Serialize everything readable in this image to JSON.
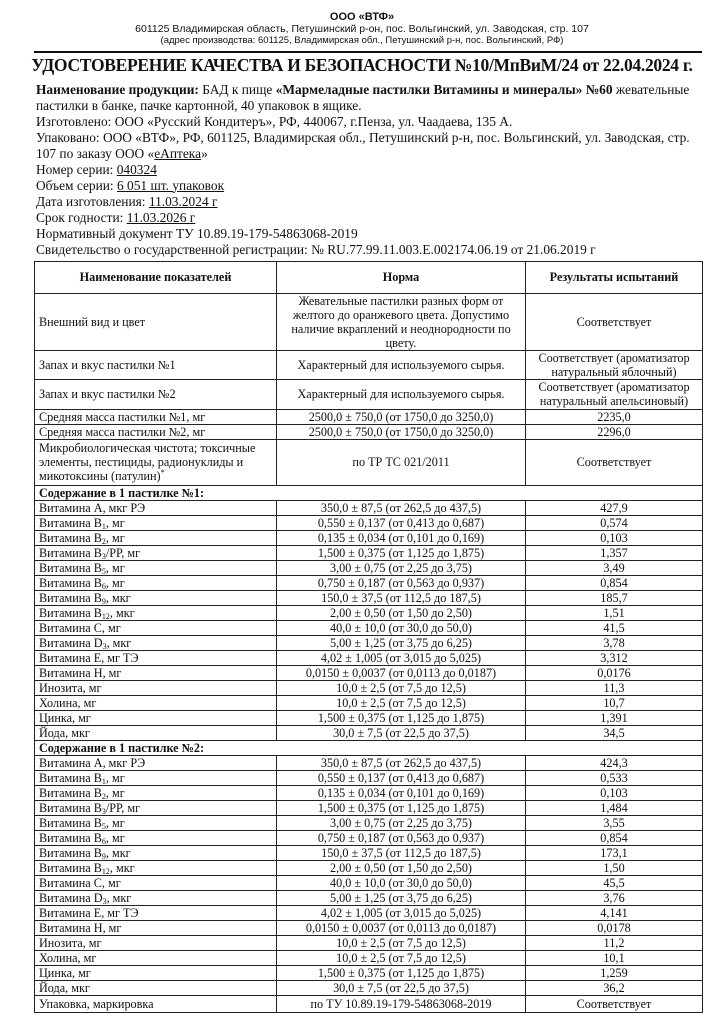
{
  "header": {
    "company": "ООО «ВТФ»",
    "address": "601125 Владимирская область, Петушинский р-он, пос. Вольгинский, ул. Заводская, стр. 107",
    "production_address": "(адрес производства: 601125, Владимирская обл., Петушинский р-н, пос. Вольгинский, РФ)"
  },
  "title": "УДОСТОВЕРЕНИЕ КАЧЕСТВА И БЕЗОПАСНОСТИ №10/МпВиМ/24 от 22.04.2024 г.",
  "info": {
    "product_label": "Наименование продукции:",
    "product_prefix": "БАД к пище",
    "product_name": "«Мармеладные пастилки Витамины и минералы» №60",
    "product_suffix": "жевательные пастилки в банке, пачке картонной, 40 упаковок в ящике.",
    "manufactured": "Изготовлено: ООО «Русский Кондитеръ», РФ, 440067, г.Пенза, ул. Чаадаева, 135 А.",
    "packed": "Упаковано: ООО «ВТФ», РФ, 601125, Владимирская обл., Петушинский р-н, пос. Вольгинский, ул. Заводская, стр. 107 по заказу ООО «",
    "packed_client": "еАптека",
    "packed_end": "»",
    "batch_label": "Номер серии: ",
    "batch": "040324",
    "volume_label": "Объем серии: ",
    "volume": "6 051 шт. упаковок",
    "date_label": "Дата изготовления: ",
    "date": "11.03.2024 г",
    "expiry_label": "Срок годности: ",
    "expiry": "11.03.2026 г",
    "normative": "Нормативный документ ТУ 10.89.19-179-54863068-2019",
    "registration": "Свидетельство о государственной регистрации: № RU.77.99.11.003.Е.002174.06.19 от 21.06.2019 г"
  },
  "table": {
    "headers": [
      "Наименование показателей",
      "Норма",
      "Результаты испытаний"
    ],
    "general_rows": [
      {
        "name": "Внешний вид и цвет",
        "norm": "Жевательные пастилки разных форм от желтого до оранжевого цвета. Допустимо наличие вкраплений и  неоднородности по цвету.",
        "result": "Соответствует"
      },
      {
        "name": "Запах и вкус пастилки №1",
        "norm": "Характерный для используемого сырья.",
        "result": "Соответствует (ароматизатор натуральный яблочный)"
      },
      {
        "name": "Запах и вкус пастилки №2",
        "norm": "Характерный для используемого сырья.",
        "result": "Соответствует (ароматизатор натуральный апельсиновый)"
      },
      {
        "name": "Средняя масса пастилки №1, мг",
        "norm": "2500,0 ± 750,0 (от 1750,0 до 3250,0)",
        "result": "2235,0"
      },
      {
        "name": "Средняя масса пастилки №2, мг",
        "norm": "2500,0 ± 750,0 (от 1750,0 до 3250,0)",
        "result": "2296,0"
      },
      {
        "name": "Микробиологическая чистота; токсичные элементы, пестициды, радионуклиды и микотоксины (патулин)",
        "name_sup": "*",
        "norm": "по ТР ТС 021/2011",
        "result": "Соответствует"
      }
    ],
    "sections": [
      {
        "title": "Содержание в 1 пастилке №1:",
        "rows": [
          {
            "name": "Витамина А",
            "sub": "",
            "unit": ", мкг РЭ",
            "norm": "350,0 ± 87,5 (от 262,5 до 437,5)",
            "result": "427,9"
          },
          {
            "name": "Витамина В",
            "sub": "1",
            "unit": ", мг",
            "norm": "0,550 ± 0,137 (от 0,413 до 0,687)",
            "result": "0,574"
          },
          {
            "name": "Витамина В",
            "sub": "2",
            "unit": ", мг",
            "norm": "0,135 ± 0,034 (от 0,101 до 0,169)",
            "result": "0,103"
          },
          {
            "name": "Витамина В",
            "sub": "3",
            "unit": "/РР, мг",
            "norm": "1,500 ± 0,375 (от 1,125 до 1,875)",
            "result": "1,357"
          },
          {
            "name": "Витамина В",
            "sub": "5",
            "unit": ", мг",
            "norm": "3,00 ± 0,75 (от 2,25 до 3,75)",
            "result": "3,49"
          },
          {
            "name": "Витамина В",
            "sub": "6",
            "unit": ", мг",
            "norm": "0,750 ± 0,187 (от 0,563 до 0,937)",
            "result": "0,854"
          },
          {
            "name": "Витамина В",
            "sub": "9",
            "unit": ", мкг",
            "norm": "150,0 ± 37,5 (от 112,5 до 187,5)",
            "result": "185,7"
          },
          {
            "name": "Витамина В",
            "sub": "12",
            "unit": ", мкг",
            "norm": "2,00 ± 0,50 (от 1,50 до 2,50)",
            "result": "1,51"
          },
          {
            "name": "Витамина С",
            "sub": "",
            "unit": ", мг",
            "norm": "40,0 ± 10,0 (от 30,0 до 50,0)",
            "result": "41,5"
          },
          {
            "name": "Витамина D",
            "sub": "3",
            "unit": ", мкг",
            "norm": "5,00 ± 1,25 (от 3,75 до 6,25)",
            "result": "3,78"
          },
          {
            "name": "Витамина Е",
            "sub": "",
            "unit": ", мг ТЭ",
            "norm": "4,02 ± 1,005 (от 3,015 до 5,025)",
            "result": "3,312"
          },
          {
            "name": "Витамина Н",
            "sub": "",
            "unit": ", мг",
            "norm": "0,0150 ± 0,0037 (от 0,0113 до 0,0187)",
            "result": "0,0176"
          },
          {
            "name": "Инозита",
            "sub": "",
            "unit": ", мг",
            "norm": "10,0 ± 2,5 (от 7,5 до 12,5)",
            "result": "11,3"
          },
          {
            "name": "Холина",
            "sub": "",
            "unit": ", мг",
            "norm": "10,0 ± 2,5 (от 7,5 до 12,5)",
            "result": "10,7"
          },
          {
            "name": "Цинка",
            "sub": "",
            "unit": ", мг",
            "norm": "1,500 ± 0,375 (от 1,125 до 1,875)",
            "result": "1,391"
          },
          {
            "name": "Йода",
            "sub": "",
            "unit": ", мкг",
            "norm": "30,0 ± 7,5 (от 22,5 до 37,5)",
            "result": "34,5"
          }
        ]
      },
      {
        "title": "Содержание в 1 пастилке №2:",
        "rows": [
          {
            "name": "Витамина А",
            "sub": "",
            "unit": ", мкг РЭ",
            "norm": "350,0 ± 87,5 (от 262,5 до 437,5)",
            "result": "424,3"
          },
          {
            "name": "Витамина В",
            "sub": "1",
            "unit": ", мг",
            "norm": "0,550 ± 0,137 (от 0,413 до 0,687)",
            "result": "0,533"
          },
          {
            "name": "Витамина В",
            "sub": "2",
            "unit": ", мг",
            "norm": "0,135 ± 0,034 (от 0,101 до 0,169)",
            "result": "0,103"
          },
          {
            "name": "Витамина В",
            "sub": "3",
            "unit": "/РР, мг",
            "norm": "1,500 ± 0,375 (от 1,125 до 1,875)",
            "result": "1,484"
          },
          {
            "name": "Витамина В",
            "sub": "5",
            "unit": ", мг",
            "norm": "3,00 ± 0,75 (от 2,25 до 3,75)",
            "result": "3,55"
          },
          {
            "name": "Витамина В",
            "sub": "6",
            "unit": ", мг",
            "norm": "0,750 ± 0,187 (от 0,563 до 0,937)",
            "result": "0,854"
          },
          {
            "name": "Витамина В",
            "sub": "9",
            "unit": ", мкг",
            "norm": "150,0 ± 37,5 (от 112,5 до 187,5)",
            "result": "173,1"
          },
          {
            "name": "Витамина В",
            "sub": "12",
            "unit": ", мкг",
            "norm": "2,00 ± 0,50 (от 1,50 до 2,50)",
            "result": "1,50"
          },
          {
            "name": "Витамина С",
            "sub": "",
            "unit": ", мг",
            "norm": "40,0 ± 10,0 (от 30,0 до 50,0)",
            "result": "45,5"
          },
          {
            "name": "Витамина D",
            "sub": "3",
            "unit": ", мкг",
            "norm": "5,00 ± 1,25 (от 3,75 до 6,25)",
            "result": "3,76"
          },
          {
            "name": "Витамина Е",
            "sub": "",
            "unit": ", мг ТЭ",
            "norm": "4,02 ± 1,005 (от 3,015 до 5,025)",
            "result": "4,141"
          },
          {
            "name": "Витамина Н",
            "sub": "",
            "unit": ", мг",
            "norm": "0,0150 ± 0,0037 (от 0,0113 до 0,0187)",
            "result": "0,0178"
          },
          {
            "name": "Инозита",
            "sub": "",
            "unit": ", мг",
            "norm": "10,0 ± 2,5 (от 7,5 до 12,5)",
            "result": "11,2"
          },
          {
            "name": "Холина",
            "sub": "",
            "unit": ", мг",
            "norm": "10,0 ± 2,5 (от 7,5 до 12,5)",
            "result": "10,1"
          },
          {
            "name": "Цинка",
            "sub": "",
            "unit": ", мг",
            "norm": "1,500 ± 0,375 (от 1,125 до 1,875)",
            "result": "1,259"
          },
          {
            "name": "Йода",
            "sub": "",
            "unit": ", мкг",
            "norm": "30,0 ± 7,5 (от 22,5 до 37,5)",
            "result": "36,2"
          }
        ]
      }
    ],
    "final_row": {
      "name": "Упаковка, маркировка",
      "norm": "по ТУ 10.89.19-179-54863068-2019",
      "result": "Соответствует"
    }
  }
}
